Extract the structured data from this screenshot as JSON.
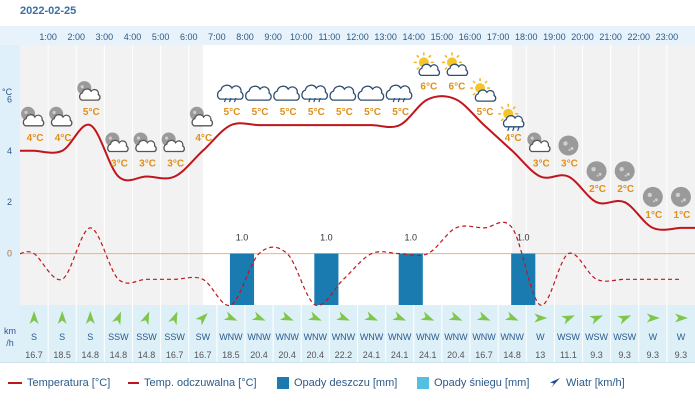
{
  "date": "2022-02-25",
  "chart_data": {
    "type": "line",
    "hours": [
      "1:00",
      "2:00",
      "3:00",
      "4:00",
      "5:00",
      "6:00",
      "7:00",
      "8:00",
      "9:00",
      "10:00",
      "11:00",
      "12:00",
      "13:00",
      "14:00",
      "15:00",
      "16:00",
      "17:00",
      "18:00",
      "19:00",
      "20:00",
      "21:00",
      "22:00",
      "23:00"
    ],
    "y_unit": "°C",
    "y_ticks": [
      6,
      4,
      2,
      0
    ],
    "ylim": [
      -2,
      8
    ],
    "temperature": [
      4,
      4,
      5,
      3,
      3,
      3,
      4,
      5,
      5,
      5,
      5,
      5,
      5,
      5,
      6,
      6,
      5,
      4,
      3,
      3,
      2,
      2,
      1,
      1
    ],
    "temperature_labels": [
      "4°C",
      "4°C",
      "5°C",
      "3°C",
      "3°C",
      "3°C",
      "4°C",
      "5°C",
      "5°C",
      "5°C",
      "5°C",
      "5°C",
      "5°C",
      "5°C",
      "6°C",
      "6°C",
      "5°C",
      "4°C",
      "3°C",
      "3°C",
      "2°C",
      "2°C",
      "1°C",
      "1°C"
    ],
    "feels_like": [
      0,
      -1,
      1,
      -1,
      -1,
      -1,
      -1,
      -2,
      0,
      0,
      -2,
      -1,
      0,
      0,
      0,
      1,
      1,
      1,
      -2,
      0,
      -1,
      -1,
      -1,
      -1
    ],
    "rain": [
      {
        "hour_index": 7,
        "value": 1.0,
        "label": "1.0"
      },
      {
        "hour_index": 10,
        "value": 1.0,
        "label": "1.0"
      },
      {
        "hour_index": 13,
        "value": 1.0,
        "label": "1.0"
      },
      {
        "hour_index": 17,
        "value": 1.0,
        "label": "1.0"
      }
    ],
    "wind_dir": [
      "S",
      "S",
      "S",
      "SSW",
      "SSW",
      "SSW",
      "SW",
      "WNW",
      "WNW",
      "WNW",
      "WNW",
      "WNW",
      "WNW",
      "WNW",
      "WNW",
      "WNW",
      "WNW",
      "WNW",
      "W",
      "WSW",
      "WSW",
      "WSW",
      "W",
      "W"
    ],
    "wind_speed": [
      "16.7",
      "18.5",
      "14.8",
      "14.8",
      "14.8",
      "16.7",
      "16.7",
      "18.5",
      "20.4",
      "20.4",
      "20.4",
      "22.2",
      "24.1",
      "24.1",
      "24.1",
      "20.4",
      "16.7",
      "14.8",
      "13",
      "11.1",
      "9.3",
      "9.3",
      "9.3",
      "9.3"
    ],
    "wind_unit_top": "km",
    "wind_unit_bottom": "/h",
    "icons": [
      "cloud-moon-icon",
      "cloud-moon-icon",
      "cloud-moon-icon",
      "cloud-moon-icon",
      "cloud-moon-icon",
      "cloud-moon-icon",
      "cloud-moon-icon",
      "cloud-rain-icon",
      "cloud-icon",
      "cloud-icon",
      "cloud-rain-icon",
      "cloud-icon",
      "cloud-icon",
      "cloud-rain-icon",
      "sun-cloud-icon",
      "sun-cloud-icon",
      "sun-cloud-icon",
      "sun-cloud-rain-icon",
      "cloud-moon-icon",
      "moon-icon",
      "moon-icon",
      "moon-icon",
      "moon-icon",
      "moon-icon"
    ],
    "legend": [
      {
        "label": "Temperatura [°C]",
        "kind": "line",
        "color": "#c0161b"
      },
      {
        "label": "Temp. odczuwalna [°C]",
        "kind": "line",
        "color": "#c0161b"
      },
      {
        "label": "Opady deszczu [mm]",
        "kind": "box",
        "color": "#1a7bb0"
      },
      {
        "label": "Opady śniegu [mm]",
        "kind": "box",
        "color": "#55bfe0"
      },
      {
        "label": "Wiatr [km/h]",
        "kind": "arrow",
        "color": "#1d4f8a"
      }
    ]
  }
}
